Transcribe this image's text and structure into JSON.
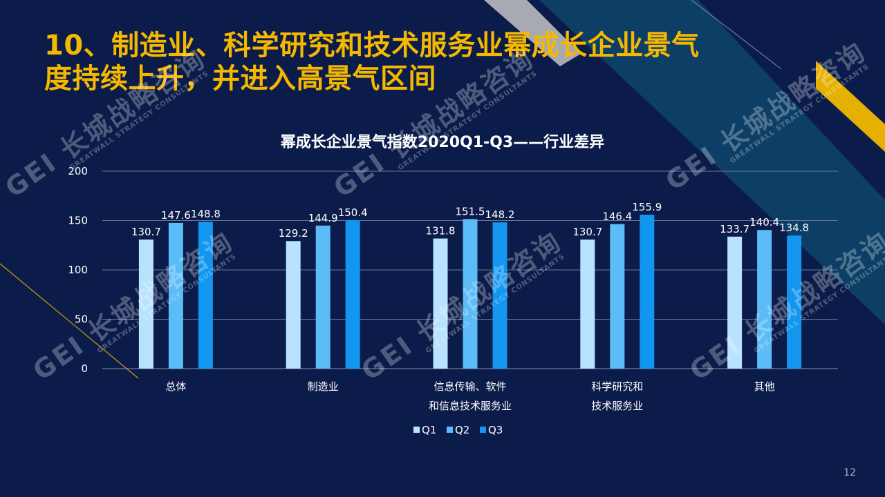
{
  "slide": {
    "title_lines": [
      "10、制造业、科学研究和技术服务业幂成长企业景气",
      "度持续上升，并进入高景气区间"
    ],
    "page_number": "12"
  },
  "watermark": {
    "main": "GEI 长城战略咨询",
    "sub": "GREATWALL STRATEGY CONSULTANTS"
  },
  "colors": {
    "background": "#0c1c4a",
    "title": "#f5b800",
    "q1": "#b9e2ff",
    "q2": "#5bbcf8",
    "q3": "#1296f0",
    "grid": "#6b7797",
    "axis_text": "#ffffff"
  },
  "chart_data": {
    "type": "bar",
    "title": "幂成长企业景气指数2020Q1-Q3——行业差异",
    "categories": [
      [
        "总体"
      ],
      [
        "制造业"
      ],
      [
        "信息传输、软件",
        "和信息技术服务业"
      ],
      [
        "科学研究和",
        "技术服务业"
      ],
      [
        "其他"
      ]
    ],
    "series": [
      {
        "name": "Q1",
        "values": [
          130.7,
          129.2,
          131.8,
          130.7,
          133.7
        ]
      },
      {
        "name": "Q2",
        "values": [
          147.6,
          144.9,
          151.5,
          146.4,
          140.4
        ]
      },
      {
        "name": "Q3",
        "values": [
          148.8,
          150.4,
          148.2,
          155.9,
          134.8
        ]
      }
    ],
    "yticks": [
      0,
      50,
      100,
      150,
      200
    ],
    "ylim": [
      0,
      200
    ],
    "grid": true,
    "legend": "bottom"
  }
}
